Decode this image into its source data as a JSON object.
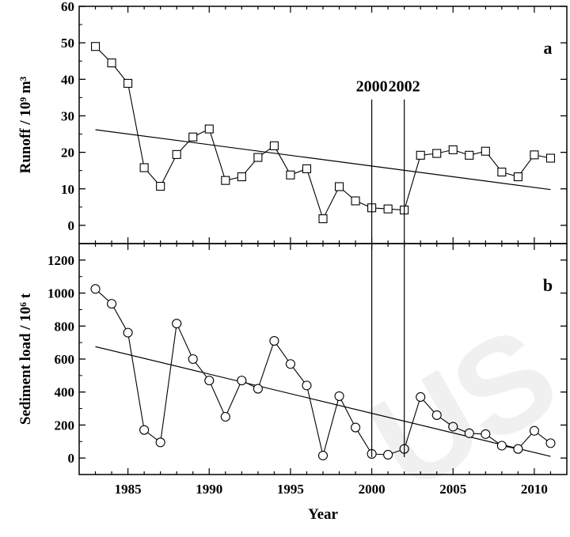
{
  "figure": {
    "watermark": "US",
    "annotations": [
      "2000",
      "2002"
    ]
  },
  "chart_data": [
    {
      "type": "line",
      "panel": "a",
      "title": "",
      "xlabel": "",
      "ylabel": "Runoff / 10⁹ m³",
      "xlim": [
        1982,
        2012
      ],
      "ylim": [
        -5,
        60
      ],
      "yticks": [
        0,
        10,
        20,
        30,
        40,
        50,
        60
      ],
      "grid": false,
      "marker": "square",
      "x": [
        1983,
        1984,
        1985,
        1986,
        1987,
        1988,
        1989,
        1990,
        1991,
        1992,
        1993,
        1994,
        1995,
        1996,
        1997,
        1998,
        1999,
        2000,
        2001,
        2002,
        2003,
        2004,
        2005,
        2006,
        2007,
        2008,
        2009,
        2010,
        2011
      ],
      "values": [
        49.0,
        44.5,
        38.9,
        15.8,
        10.7,
        19.4,
        24.2,
        26.4,
        12.3,
        13.3,
        18.6,
        21.8,
        13.8,
        15.5,
        1.8,
        10.6,
        6.7,
        4.8,
        4.5,
        4.2,
        19.2,
        19.7,
        20.7,
        19.2,
        20.3,
        14.6,
        13.3,
        19.3,
        18.4
      ],
      "trend": {
        "x": [
          1983,
          2011
        ],
        "y": [
          26.2,
          9.8
        ]
      },
      "vlines": [
        2000,
        2002
      ]
    },
    {
      "type": "line",
      "panel": "b",
      "title": "",
      "xlabel": "Year",
      "ylabel": "Sediment load / 10⁶ t",
      "xlim": [
        1982,
        2012
      ],
      "ylim": [
        -100,
        1300
      ],
      "yticks": [
        0,
        200,
        400,
        600,
        800,
        1000,
        1200
      ],
      "xticks": [
        1985,
        1990,
        1995,
        2000,
        2005,
        2010
      ],
      "grid": false,
      "marker": "circle",
      "x": [
        1983,
        1984,
        1985,
        1986,
        1987,
        1988,
        1989,
        1990,
        1991,
        1992,
        1993,
        1994,
        1995,
        1996,
        1997,
        1998,
        1999,
        2000,
        2001,
        2002,
        2003,
        2004,
        2005,
        2006,
        2007,
        2008,
        2009,
        2010,
        2011
      ],
      "values": [
        1025,
        935,
        760,
        170,
        95,
        815,
        600,
        470,
        250,
        470,
        420,
        710,
        570,
        440,
        15,
        375,
        185,
        25,
        20,
        55,
        370,
        260,
        190,
        150,
        145,
        75,
        55,
        165,
        90
      ],
      "trend": {
        "x": [
          1983,
          2011
        ],
        "y": [
          675,
          10
        ]
      },
      "vlines": [
        2000,
        2002
      ]
    }
  ]
}
